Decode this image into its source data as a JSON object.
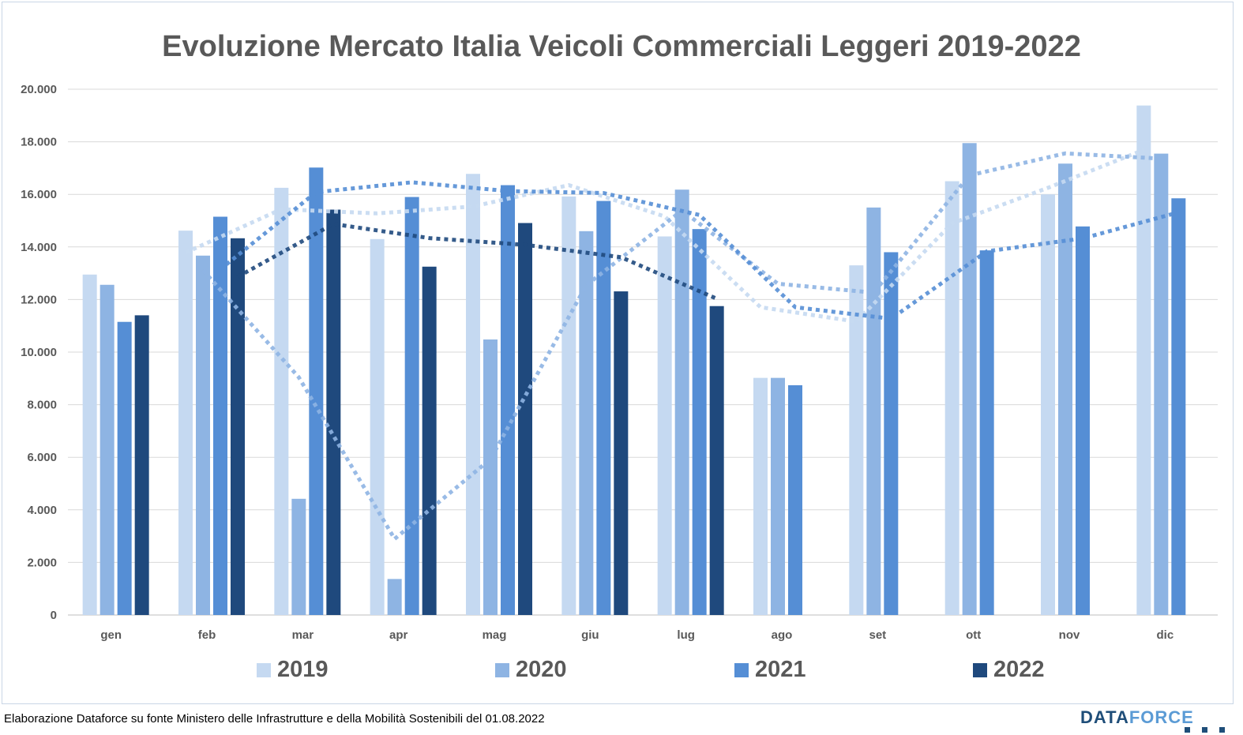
{
  "title": "Evoluzione Mercato Italia Veicoli Commerciali Leggeri 2019-2022",
  "footer": "Elaborazione Dataforce su fonte Ministero delle Infrastrutture e della Mobilità Sostenibili del 01.08.2022",
  "logo": {
    "part1": "DATA",
    "part2": "FORCE"
  },
  "chart_data": {
    "type": "bar",
    "title": "Evoluzione Mercato Italia Veicoli Commerciali Leggeri 2019-2022",
    "categories": [
      "gen",
      "feb",
      "mar",
      "apr",
      "mag",
      "giu",
      "lug",
      "ago",
      "set",
      "ott",
      "nov",
      "dic"
    ],
    "ylim": [
      0,
      20000
    ],
    "yticks": [
      0,
      2000,
      4000,
      6000,
      8000,
      10000,
      12000,
      14000,
      16000,
      18000,
      20000
    ],
    "ytick_labels": [
      "0",
      "2.000",
      "4.000",
      "6.000",
      "8.000",
      "10.000",
      "12.000",
      "14.000",
      "16.000",
      "18.000",
      "20.000"
    ],
    "grid": true,
    "legend_position": "bottom",
    "trendlines": "dotted moving-average line per series",
    "series": [
      {
        "name": "2019",
        "color": "#c5d9f1",
        "values": [
          12950,
          14620,
          16250,
          14300,
          16780,
          15920,
          14400,
          9020,
          13300,
          16500,
          16000,
          19380
        ]
      },
      {
        "name": "2020",
        "color": "#8eb4e3",
        "values": [
          12560,
          13670,
          4420,
          1370,
          10480,
          14600,
          16180,
          9020,
          15500,
          17950,
          17170,
          17550
        ]
      },
      {
        "name": "2021",
        "color": "#558ed5",
        "values": [
          11150,
          15150,
          17020,
          15900,
          16350,
          15750,
          14680,
          8740,
          13800,
          13870,
          14780,
          15850
        ]
      },
      {
        "name": "2022",
        "color": "#1f497d",
        "values": [
          11400,
          14330,
          15420,
          13250,
          14910,
          12310,
          11750,
          null,
          null,
          null,
          null,
          null
        ]
      }
    ]
  }
}
